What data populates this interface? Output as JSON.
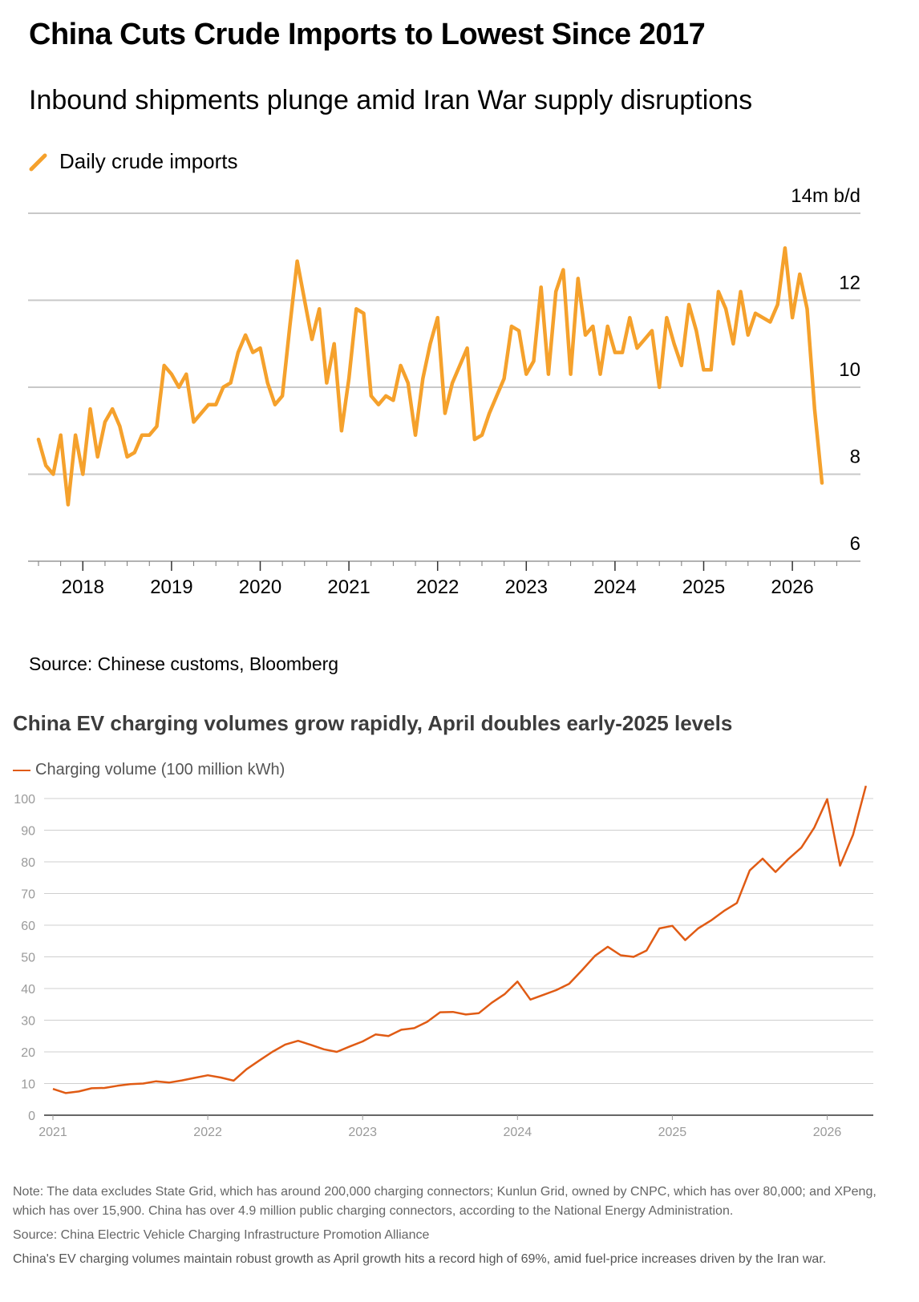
{
  "chart_data": [
    {
      "type": "line",
      "title": "China Cuts Crude Imports to Lowest Since 2017",
      "subtitle": "Inbound shipments plunge amid Iran War supply disruptions",
      "unit_label": "14m b/d",
      "y_ticks": [
        6,
        8,
        10,
        12,
        14
      ],
      "ylim": [
        6,
        14
      ],
      "x_ticks": [
        "2018",
        "2019",
        "2020",
        "2021",
        "2022",
        "2023",
        "2024",
        "2025",
        "2026"
      ],
      "x_start": 2017.5,
      "x_step_months": 1,
      "series": [
        {
          "name": "Daily crude imports",
          "color": "#f5a12c",
          "values": [
            8.8,
            8.2,
            8.0,
            8.9,
            7.3,
            8.9,
            8.0,
            9.5,
            8.4,
            9.2,
            9.5,
            9.1,
            8.4,
            8.5,
            8.9,
            8.9,
            9.1,
            10.5,
            10.3,
            10.0,
            10.3,
            9.2,
            9.4,
            9.6,
            9.6,
            10.0,
            10.1,
            10.8,
            11.2,
            10.8,
            10.9,
            10.1,
            9.6,
            9.8,
            11.4,
            12.9,
            12.0,
            11.1,
            11.8,
            10.1,
            11.0,
            9.0,
            10.2,
            11.8,
            11.7,
            9.8,
            9.6,
            9.8,
            9.7,
            10.5,
            10.1,
            8.9,
            10.2,
            11.0,
            11.6,
            9.4,
            10.1,
            10.5,
            10.9,
            8.8,
            8.9,
            9.4,
            9.8,
            10.2,
            11.4,
            11.3,
            10.3,
            10.6,
            12.3,
            10.3,
            12.2,
            12.7,
            10.3,
            12.5,
            11.2,
            11.4,
            10.3,
            11.4,
            10.8,
            10.8,
            11.6,
            10.9,
            11.1,
            11.3,
            10.0,
            11.6,
            11.0,
            10.5,
            11.9,
            11.3,
            10.4,
            10.4,
            12.2,
            11.8,
            11.0,
            12.2,
            11.2,
            11.7,
            11.6,
            11.5,
            11.9,
            13.2,
            11.6,
            12.6,
            11.8,
            9.5,
            7.8
          ]
        }
      ],
      "source": "Source: Chinese customs, Bloomberg"
    },
    {
      "type": "line",
      "title": "China EV charging volumes grow rapidly, April doubles early-2025 levels",
      "y_ticks": [
        0,
        10,
        20,
        30,
        40,
        50,
        60,
        70,
        80,
        90,
        100
      ],
      "ylim": [
        0,
        100
      ],
      "x_ticks": [
        "2021",
        "2022",
        "2023",
        "2024",
        "2025",
        "2026"
      ],
      "x_start": 2021.0,
      "x_step_months": 1,
      "series": [
        {
          "name": "Charging volume (100 million kWh)",
          "color": "#e05b14",
          "values": [
            8.3,
            7.0,
            7.5,
            8.5,
            8.6,
            9.3,
            9.8,
            10.0,
            10.7,
            10.3,
            11.0,
            11.8,
            12.6,
            11.9,
            10.9,
            14.5,
            17.3,
            20.0,
            22.3,
            23.5,
            22.2,
            20.8,
            20.0,
            21.7,
            23.3,
            25.5,
            25.0,
            27.0,
            27.5,
            29.5,
            32.5,
            32.6,
            31.8,
            32.2,
            35.5,
            38.2,
            42.2,
            36.5,
            38.0,
            39.5,
            41.5,
            45.8,
            50.3,
            53.2,
            50.5,
            50.0,
            52.0,
            59.0,
            59.8,
            55.3,
            59.0,
            61.5,
            64.5,
            67.0,
            77.3,
            81.0,
            76.8,
            80.9,
            84.5,
            90.8,
            99.8,
            78.8,
            88.5,
            104.0
          ]
        }
      ],
      "note": "Note: The data excludes State Grid, which has around 200,000 charging connectors; Kunlun Grid, owned by CNPC, which has over 80,000; and XPeng, which has over 15,900. China has over 4.9 million public charging connectors, according to the National Energy Administration.",
      "source": "Source: China Electric Vehicle Charging Infrastructure Promotion Alliance",
      "caption": "China's EV charging volumes maintain robust growth as April growth hits a record high of 69%, amid fuel-price increases driven by the Iran war."
    }
  ],
  "colors": {
    "chart1_line": "#f5a12c",
    "chart2_line": "#e05b14",
    "grid": "#c8c8c8"
  }
}
